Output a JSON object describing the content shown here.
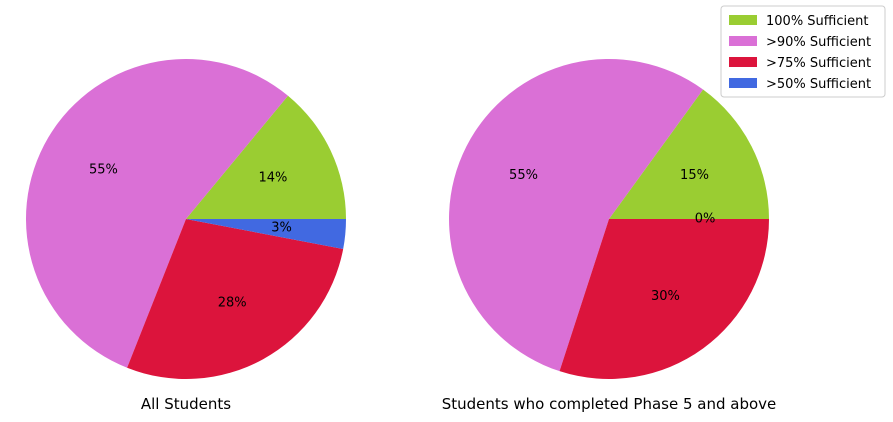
{
  "chart_data": [
    {
      "type": "pie",
      "title": "All Students",
      "categories": [
        "100% Sufficient",
        ">90% Sufficient",
        ">75% Sufficient",
        ">50% Sufficient"
      ],
      "values": [
        14,
        55,
        28,
        3
      ],
      "labels": [
        "14%",
        "55%",
        "28%",
        "3%"
      ]
    },
    {
      "type": "pie",
      "title": "Students who completed Phase 5 and above",
      "categories": [
        "100% Sufficient",
        ">90% Sufficient",
        ">75% Sufficient",
        ">50% Sufficient"
      ],
      "values": [
        15,
        55,
        30,
        0
      ],
      "labels": [
        "15%",
        "55%",
        "30%",
        "0%"
      ]
    }
  ],
  "legend": {
    "placement": "top-right",
    "entries": [
      "100% Sufficient",
      ">90% Sufficient",
      ">75% Sufficient",
      ">50% Sufficient"
    ]
  },
  "colors": [
    "#9acd32",
    "#da70d6",
    "#dc143c",
    "#4169e1"
  ]
}
